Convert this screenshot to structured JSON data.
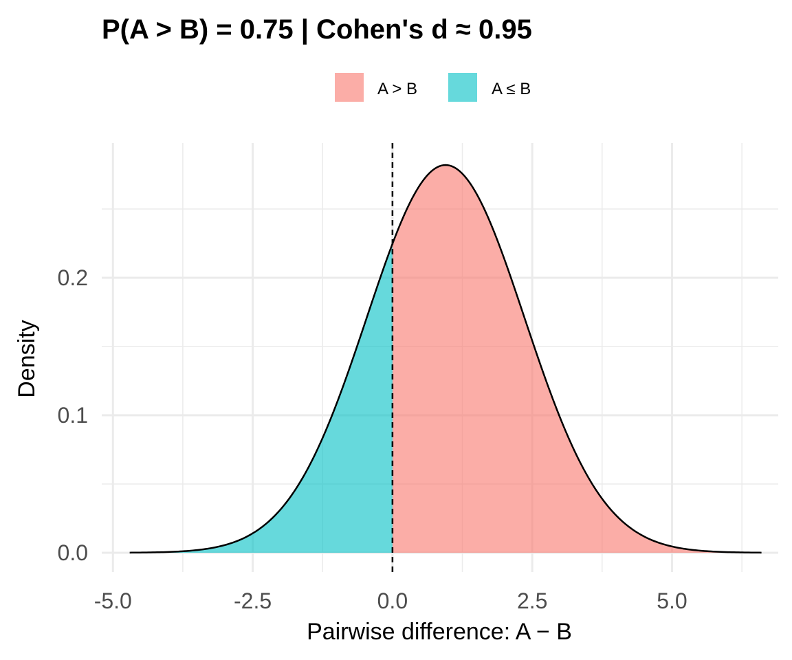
{
  "chart_data": {
    "type": "area",
    "title": "P(A > B) = 0.75  |  Cohen's d ≈ 0.95",
    "xlabel": "Pairwise difference: A − B",
    "ylabel": "Density",
    "xlim": [
      -5.2,
      6.9
    ],
    "ylim": [
      -0.014,
      0.298
    ],
    "x_ticks": [
      {
        "value": -5.0,
        "label": "-5.0"
      },
      {
        "value": -2.5,
        "label": "-2.5"
      },
      {
        "value": 0.0,
        "label": "0.0"
      },
      {
        "value": 2.5,
        "label": "2.5"
      },
      {
        "value": 5.0,
        "label": "5.0"
      }
    ],
    "x_minor_ticks": [
      -3.75,
      -1.25,
      1.25,
      3.75,
      6.25
    ],
    "y_ticks": [
      {
        "value": 0.0,
        "label": "0.0"
      },
      {
        "value": 0.1,
        "label": "0.1"
      },
      {
        "value": 0.2,
        "label": "0.2"
      }
    ],
    "y_minor_ticks": [
      0.05,
      0.15,
      0.25
    ],
    "grid": true,
    "reference_line": {
      "x": 0.0,
      "style": "dashed"
    },
    "distribution": {
      "shape": "normal",
      "mean": 0.95,
      "sd": 1.41,
      "x_range": [
        -4.7,
        6.6
      ],
      "peak_density": 0.282
    },
    "series": [
      {
        "name": "A > B",
        "x_range": [
          0.0,
          6.6
        ],
        "color": "#F8766D"
      },
      {
        "name": "A ≤ B",
        "x_range": [
          -4.7,
          0.0
        ],
        "color": "#00BFC4"
      }
    ],
    "legend_position": "top",
    "fill_opacity": 0.6
  }
}
